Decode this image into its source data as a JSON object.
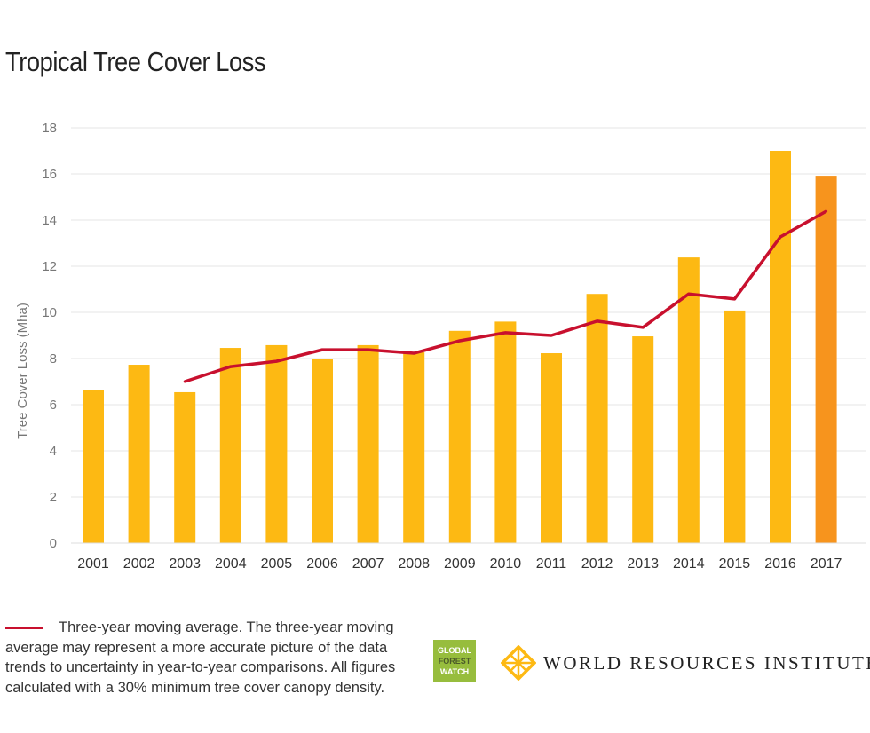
{
  "chart_data": {
    "type": "bar",
    "title": "Tropical Tree Cover Loss",
    "ylabel": "Tree Cover Loss (Mha)",
    "xlabel": "",
    "ylim": [
      0,
      18
    ],
    "yticks": [
      0,
      2,
      4,
      6,
      8,
      10,
      12,
      14,
      16,
      18
    ],
    "grid": true,
    "categories": [
      "2001",
      "2002",
      "2003",
      "2004",
      "2005",
      "2006",
      "2007",
      "2008",
      "2009",
      "2010",
      "2011",
      "2012",
      "2013",
      "2014",
      "2015",
      "2016",
      "2017"
    ],
    "series": [
      {
        "type": "bar",
        "values": [
          6.65,
          7.73,
          6.54,
          8.46,
          8.58,
          8.0,
          8.58,
          8.27,
          9.2,
          9.6,
          8.23,
          10.8,
          8.96,
          12.38,
          10.08,
          17.0,
          15.92
        ],
        "color": "#FDB913",
        "highlight_color": "#F7941D",
        "highlight_category": "2017"
      },
      {
        "type": "line",
        "name": "Three-year moving average",
        "values": [
          null,
          null,
          7.0,
          7.65,
          7.88,
          8.38,
          8.38,
          8.23,
          8.77,
          9.12,
          9.0,
          9.62,
          9.35,
          10.8,
          10.58,
          13.27,
          14.38
        ],
        "color": "#C8102E"
      }
    ]
  },
  "legend": {
    "text": "Three-year moving average. The three-year moving average may represent a more accurate picture of the data trends to uncertainty in year-to-year comparisons. All figures calculated with a 30% minimum tree cover canopy density."
  },
  "logos": {
    "gfw": [
      "GLOBAL",
      "FOREST",
      "WATCH"
    ],
    "gfw_color": "#97BD3D",
    "wri": "WORLD RESOURCES INSTITUTE",
    "wri_color": "#FDB913"
  }
}
